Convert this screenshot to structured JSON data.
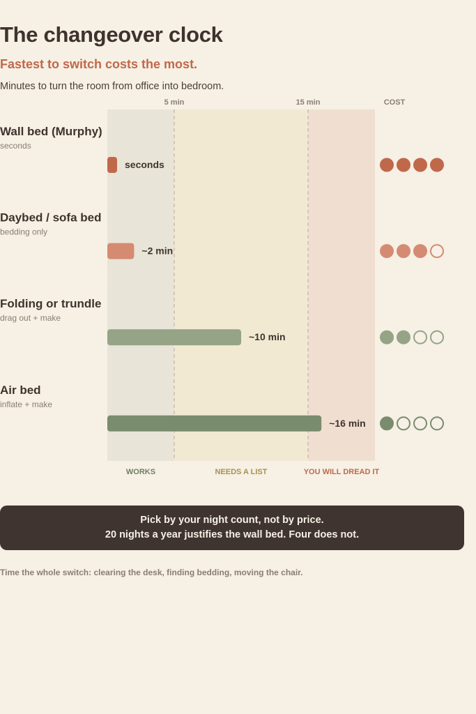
{
  "header": {
    "title": "The changeover clock",
    "subtitle": "Fastest to switch costs the most.",
    "lede": "Minutes to turn the room from office into bedroom."
  },
  "chart_data": {
    "type": "bar",
    "orientation": "horizontal",
    "x_unit": "min",
    "xlim": [
      0,
      20
    ],
    "ticks": [
      {
        "value": 5,
        "label": "5 min"
      },
      {
        "value": 15,
        "label": "15 min"
      }
    ],
    "cost_header": "COST",
    "zones": [
      {
        "label": "WORKS",
        "from": 0,
        "to": 5,
        "fill": "#e8e4d8",
        "label_color": "#6e7f60"
      },
      {
        "label": "NEEDS A LIST",
        "from": 5,
        "to": 15,
        "fill": "#f2e9d3",
        "label_color": "#a8924d"
      },
      {
        "label": "YOU WILL DREAD IT",
        "from": 15,
        "to": 20,
        "fill": "#f0dfd0",
        "label_color": "#c0694a"
      }
    ],
    "rows": [
      {
        "name": "Wall bed (Murphy)",
        "note": "seconds",
        "value": 0.1,
        "value_label": "seconds",
        "color": "#c0694a",
        "cost": 4
      },
      {
        "name": "Daybed / sofa bed",
        "note": "bedding only",
        "value": 2,
        "value_label": "~2 min",
        "color": "#d58b72",
        "cost": 3
      },
      {
        "name": "Folding or trundle",
        "note": "drag out + make",
        "value": 10,
        "value_label": "~10 min",
        "color": "#95a386",
        "cost": 2
      },
      {
        "name": "Air bed",
        "note": "inflate + make",
        "value": 16,
        "value_label": "~16 min",
        "color": "#7a8c6e",
        "cost": 1
      }
    ],
    "cost_max": 4
  },
  "callout": {
    "line1": "Pick by your night count, not by price.",
    "line2": "20 nights a year justifies the wall bed. Four does not."
  },
  "footnote": "Time the whole switch: clearing the desk, finding bedding, moving the chair."
}
